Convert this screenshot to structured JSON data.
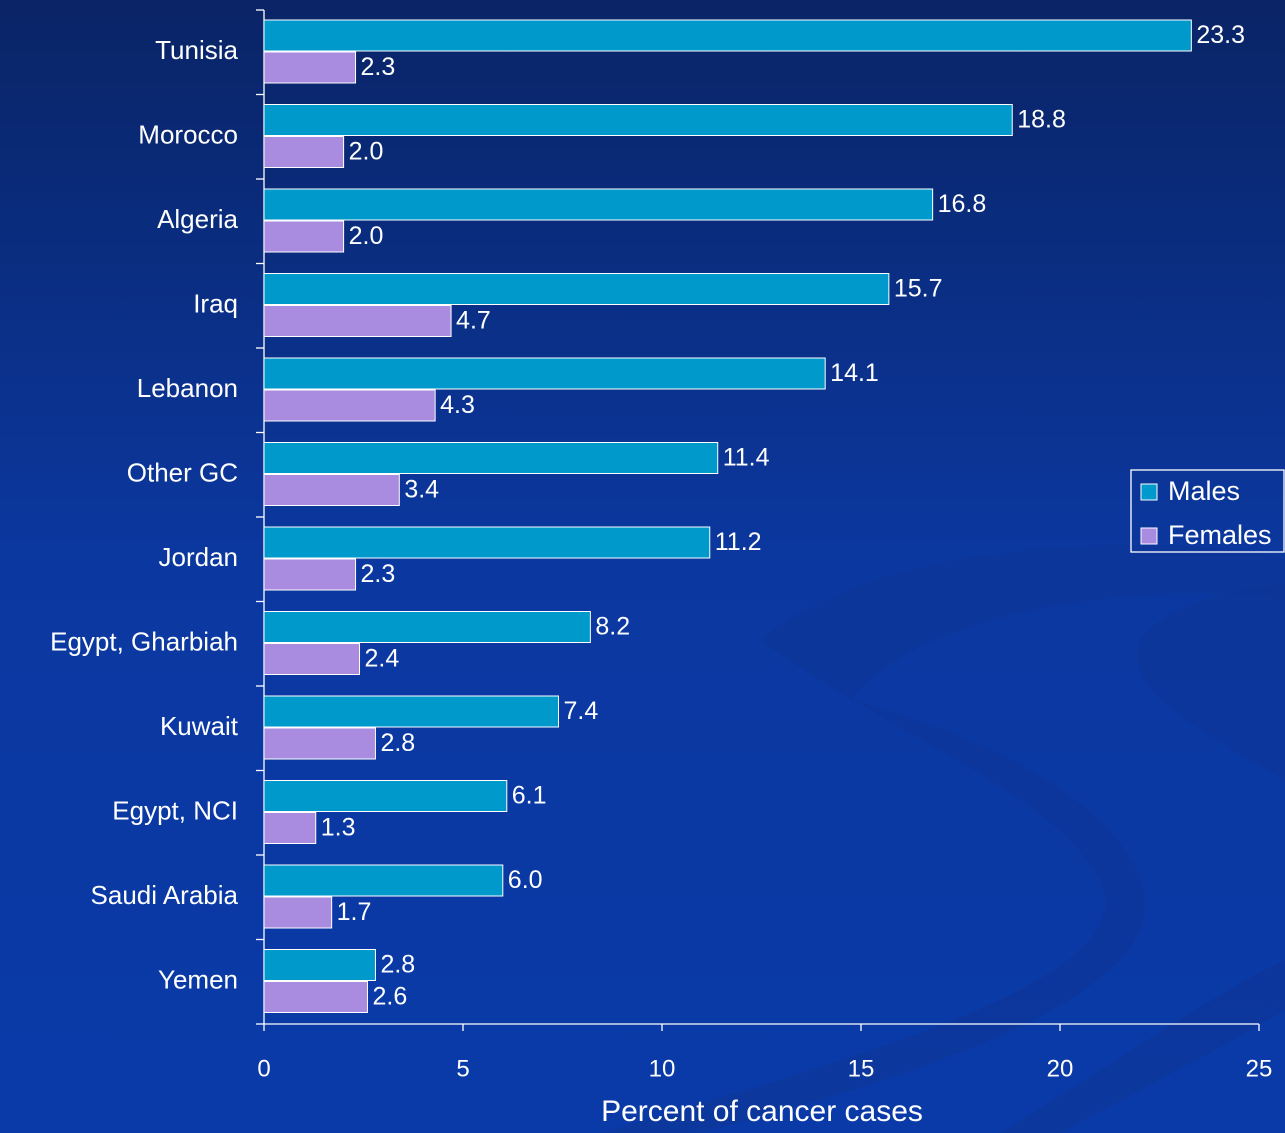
{
  "chart_data": {
    "type": "bar",
    "orientation": "horizontal",
    "x_label": "Percent of cancer cases",
    "categories": [
      "Tunisia",
      "Morocco",
      "Algeria",
      "Iraq",
      "Lebanon",
      "Other GC",
      "Jordan",
      "Egypt, Gharbiah",
      "Kuwait",
      "Egypt, NCI",
      "Saudi Arabia",
      "Yemen"
    ],
    "series": [
      {
        "name": "Males",
        "color": "#0099cc",
        "values": [
          23.3,
          18.8,
          16.8,
          15.7,
          14.1,
          11.4,
          11.2,
          8.2,
          7.4,
          6.1,
          6.0,
          2.8
        ],
        "value_labels": [
          "23.3",
          "18.8",
          "16.8",
          "15.7",
          "14.1",
          "11.4",
          "11.2",
          "8.2",
          "7.4",
          "6.1",
          "6.0",
          "2.8"
        ]
      },
      {
        "name": "Females",
        "color": "#a98be0",
        "values": [
          2.3,
          2.0,
          2.0,
          4.7,
          4.3,
          3.4,
          2.3,
          2.4,
          2.8,
          1.3,
          1.7,
          2.6
        ],
        "value_labels": [
          "2.3",
          "2.0",
          "2.0",
          "4.7",
          "4.3",
          "3.4",
          "2.3",
          "2.4",
          "2.8",
          "1.3",
          "1.7",
          "2.6"
        ]
      }
    ],
    "xlim": [
      0,
      25
    ],
    "xticks": [
      0,
      5,
      10,
      15,
      20,
      25
    ],
    "legend": "right",
    "grid": false
  }
}
